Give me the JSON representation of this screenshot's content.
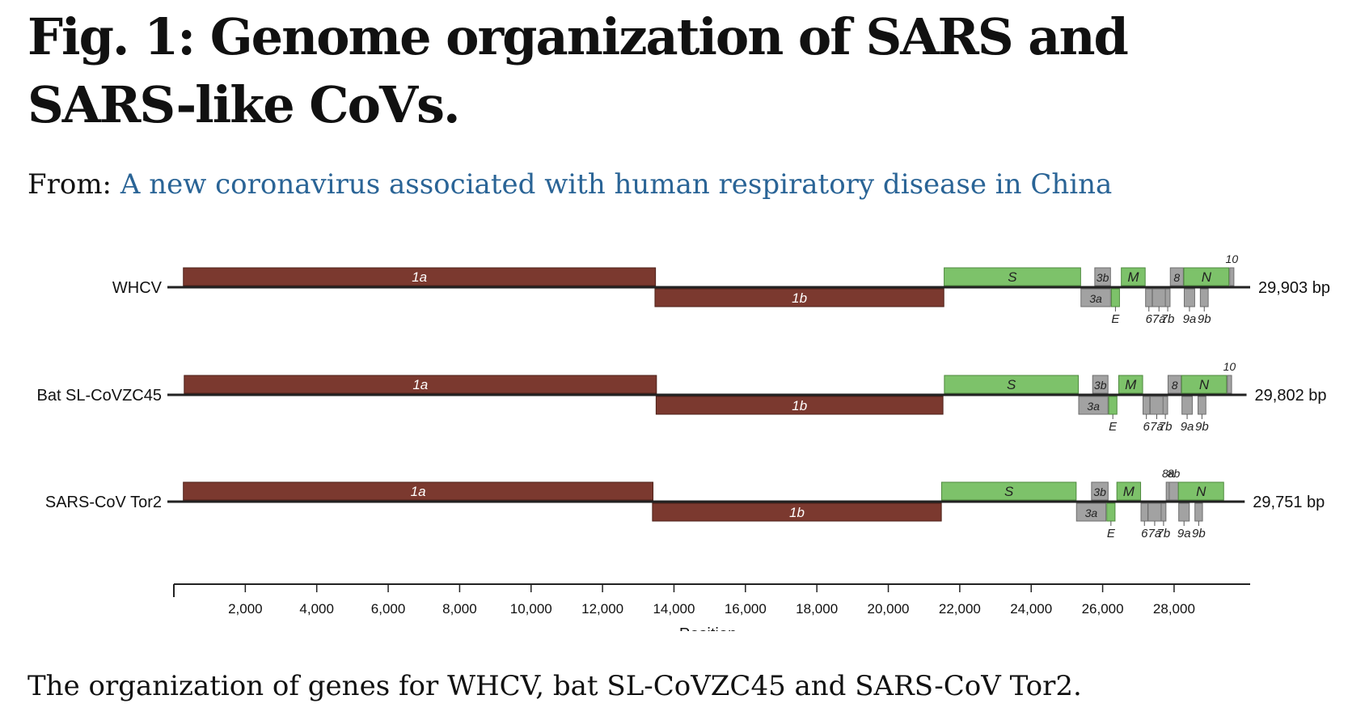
{
  "title": "Fig. 1: Genome organization of SARS and SARS-like CoVs.",
  "source": {
    "prefix": "From: ",
    "link_text": "A new coronavirus associated with human respiratory disease in China"
  },
  "caption": "The organization of genes for WHCV, bat SL-CoVZC45 and SARS-CoV Tor2.",
  "colors": {
    "orf1": "#7b392f",
    "structural": "#7dc26a",
    "accessory": "#a2a2a2",
    "axis": "#222222"
  },
  "chart_data": {
    "type": "genome-map",
    "xlabel": "Position",
    "xlim": [
      0,
      29903
    ],
    "ticks": [
      2000,
      4000,
      6000,
      8000,
      10000,
      12000,
      14000,
      16000,
      18000,
      20000,
      22000,
      24000,
      26000,
      28000
    ],
    "tick_labels": [
      "2,000",
      "4,000",
      "6,000",
      "8,000",
      "10,000",
      "12,000",
      "14,000",
      "16,000",
      "18,000",
      "20,000",
      "22,000",
      "24,000",
      "26,000",
      "28,000"
    ],
    "genomes": [
      {
        "name": "WHCV",
        "length_label": "29,903 bp",
        "length": 29903,
        "genes": [
          {
            "label": "1a",
            "start": 266,
            "end": 13483,
            "strand": "top",
            "kind": "orf1"
          },
          {
            "label": "1b",
            "start": 13468,
            "end": 21555,
            "strand": "bottom",
            "kind": "orf1"
          },
          {
            "label": "S",
            "start": 21563,
            "end": 25384,
            "strand": "top",
            "kind": "structural"
          },
          {
            "label": "3a",
            "start": 25393,
            "end": 26220,
            "strand": "bottom",
            "kind": "accessory"
          },
          {
            "label": "3b",
            "start": 25780,
            "end": 26220,
            "strand": "top",
            "kind": "accessory"
          },
          {
            "label": "E",
            "start": 26245,
            "end": 26472,
            "strand": "bottom",
            "kind": "structural",
            "label_below": true
          },
          {
            "label": "M",
            "start": 26523,
            "end": 27191,
            "strand": "top",
            "kind": "structural"
          },
          {
            "label": "6",
            "start": 27202,
            "end": 27387,
            "strand": "bottom",
            "kind": "accessory",
            "label_below": true
          },
          {
            "label": "7a",
            "start": 27394,
            "end": 27759,
            "strand": "bottom",
            "kind": "accessory",
            "label_below": true
          },
          {
            "label": "7b",
            "start": 27756,
            "end": 27887,
            "strand": "bottom",
            "kind": "accessory",
            "label_below": true
          },
          {
            "label": "8",
            "start": 27894,
            "end": 28259,
            "strand": "top",
            "kind": "accessory"
          },
          {
            "label": "N",
            "start": 28274,
            "end": 29533,
            "strand": "top",
            "kind": "structural"
          },
          {
            "label": "9a",
            "start": 28284,
            "end": 28577,
            "strand": "bottom",
            "kind": "accessory",
            "label_below": true
          },
          {
            "label": "9b",
            "start": 28734,
            "end": 28955,
            "strand": "bottom",
            "kind": "accessory",
            "label_below": true
          },
          {
            "label": "10",
            "start": 29558,
            "end": 29674,
            "strand": "top",
            "kind": "accessory",
            "label_above": true
          }
        ]
      },
      {
        "name": "Bat SL-CoVZC45",
        "length_label": "29,802 bp",
        "length": 29802,
        "genes": [
          {
            "label": "1a",
            "start": 290,
            "end": 13510,
            "strand": "top",
            "kind": "orf1"
          },
          {
            "label": "1b",
            "start": 13500,
            "end": 21530,
            "strand": "bottom",
            "kind": "orf1"
          },
          {
            "label": "S",
            "start": 21570,
            "end": 25320,
            "strand": "top",
            "kind": "structural"
          },
          {
            "label": "3a",
            "start": 25330,
            "end": 26150,
            "strand": "bottom",
            "kind": "accessory"
          },
          {
            "label": "3b",
            "start": 25720,
            "end": 26150,
            "strand": "top",
            "kind": "accessory"
          },
          {
            "label": "E",
            "start": 26170,
            "end": 26400,
            "strand": "bottom",
            "kind": "structural",
            "label_below": true
          },
          {
            "label": "M",
            "start": 26450,
            "end": 27120,
            "strand": "top",
            "kind": "structural"
          },
          {
            "label": "6",
            "start": 27130,
            "end": 27320,
            "strand": "bottom",
            "kind": "accessory",
            "label_below": true
          },
          {
            "label": "7a",
            "start": 27330,
            "end": 27700,
            "strand": "bottom",
            "kind": "accessory",
            "label_below": true
          },
          {
            "label": "7b",
            "start": 27690,
            "end": 27820,
            "strand": "bottom",
            "kind": "accessory",
            "label_below": true
          },
          {
            "label": "8",
            "start": 27830,
            "end": 28200,
            "strand": "top",
            "kind": "accessory"
          },
          {
            "label": "N",
            "start": 28210,
            "end": 29470,
            "strand": "top",
            "kind": "structural"
          },
          {
            "label": "9a",
            "start": 28220,
            "end": 28510,
            "strand": "bottom",
            "kind": "accessory",
            "label_below": true
          },
          {
            "label": "9b",
            "start": 28670,
            "end": 28890,
            "strand": "bottom",
            "kind": "accessory",
            "label_below": true
          },
          {
            "label": "10",
            "start": 29490,
            "end": 29610,
            "strand": "top",
            "kind": "accessory",
            "label_above": true
          }
        ]
      },
      {
        "name": "SARS-CoV Tor2",
        "length_label": "29,751 bp",
        "length": 29751,
        "genes": [
          {
            "label": "1a",
            "start": 265,
            "end": 13413,
            "strand": "top",
            "kind": "orf1"
          },
          {
            "label": "1b",
            "start": 13398,
            "end": 21485,
            "strand": "bottom",
            "kind": "orf1"
          },
          {
            "label": "S",
            "start": 21492,
            "end": 25259,
            "strand": "top",
            "kind": "structural"
          },
          {
            "label": "3a",
            "start": 25268,
            "end": 26092,
            "strand": "bottom",
            "kind": "accessory"
          },
          {
            "label": "3b",
            "start": 25689,
            "end": 26153,
            "strand": "top",
            "kind": "accessory"
          },
          {
            "label": "E",
            "start": 26117,
            "end": 26347,
            "strand": "bottom",
            "kind": "structural",
            "label_below": true
          },
          {
            "label": "M",
            "start": 26398,
            "end": 27063,
            "strand": "top",
            "kind": "structural"
          },
          {
            "label": "6",
            "start": 27074,
            "end": 27265,
            "strand": "bottom",
            "kind": "accessory",
            "label_below": true
          },
          {
            "label": "7a",
            "start": 27273,
            "end": 27641,
            "strand": "bottom",
            "kind": "accessory",
            "label_below": true
          },
          {
            "label": "7b",
            "start": 27638,
            "end": 27772,
            "strand": "bottom",
            "kind": "accessory",
            "label_below": true
          },
          {
            "label": "8a",
            "start": 27779,
            "end": 27898,
            "strand": "top",
            "kind": "accessory",
            "label_above": true
          },
          {
            "label": "8b",
            "start": 27864,
            "end": 28118,
            "strand": "top",
            "kind": "accessory",
            "label_above": true
          },
          {
            "label": "N",
            "start": 28120,
            "end": 29388,
            "strand": "top",
            "kind": "structural"
          },
          {
            "label": "9a",
            "start": 28130,
            "end": 28426,
            "strand": "bottom",
            "kind": "accessory",
            "label_below": true
          },
          {
            "label": "9b",
            "start": 28583,
            "end": 28795,
            "strand": "bottom",
            "kind": "accessory",
            "label_below": true
          }
        ]
      }
    ]
  }
}
